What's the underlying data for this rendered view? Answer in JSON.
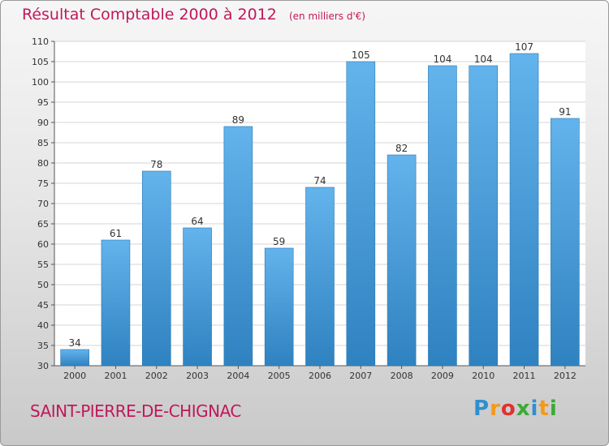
{
  "header": {
    "title": "Résultat Comptable 2000 à 2012",
    "unit": "(en milliers d'€)"
  },
  "footer": {
    "commune": "SAINT-PIERRE-DE-CHIGNAC",
    "logo_letters": [
      "P",
      "r",
      "o",
      "x",
      "i",
      "t",
      "i"
    ],
    "logo_colors": [
      "#2e8fd0",
      "#f29a1a",
      "#e0312f",
      "#3aaa35",
      "#2e8fd0",
      "#f29a1a",
      "#3aaa35"
    ]
  },
  "colors": {
    "bar_top": "#63b3ec",
    "bar_bottom": "#2f82c0",
    "bar_edge": "#2a78b3",
    "title": "#c0185a"
  },
  "chart_data": {
    "type": "bar",
    "categories": [
      "2000",
      "2001",
      "2002",
      "2003",
      "2004",
      "2005",
      "2006",
      "2007",
      "2008",
      "2009",
      "2010",
      "2011",
      "2012"
    ],
    "values": [
      34,
      61,
      78,
      64,
      89,
      59,
      74,
      105,
      82,
      104,
      104,
      107,
      91
    ],
    "ylim": [
      30,
      110
    ],
    "yticks": [
      30,
      35,
      40,
      45,
      50,
      55,
      60,
      65,
      70,
      75,
      80,
      85,
      90,
      95,
      100,
      105,
      110
    ],
    "grid": true,
    "title": "Résultat Comptable 2000 à 2012",
    "xlabel": "",
    "ylabel": ""
  }
}
